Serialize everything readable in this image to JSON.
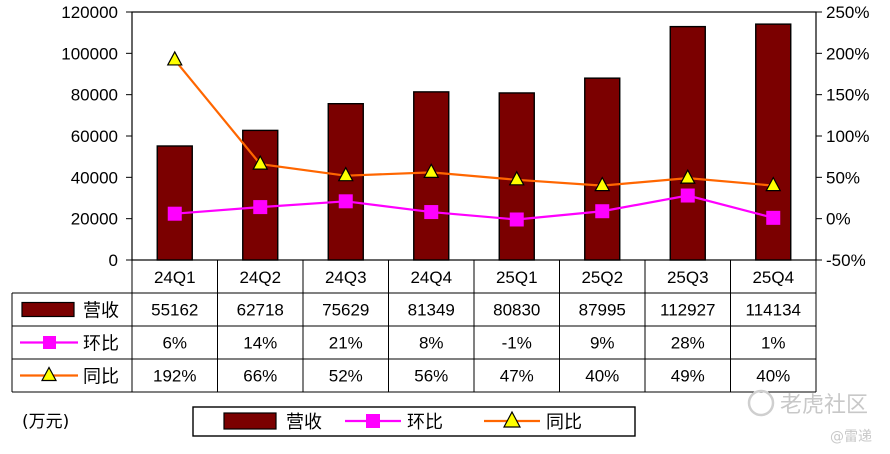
{
  "chart_data": {
    "type": "bar",
    "categories": [
      "24Q1",
      "24Q2",
      "24Q3",
      "24Q4",
      "25Q1",
      "25Q2",
      "25Q3",
      "25Q4"
    ],
    "series": [
      {
        "name": "营收",
        "type": "bar",
        "axis": "left",
        "color": "#7b0000",
        "values": [
          55162,
          62718,
          75629,
          81349,
          80830,
          87995,
          112927,
          114134
        ],
        "labels": [
          "55162",
          "62718",
          "75629",
          "81349",
          "80830",
          "87995",
          "112927",
          "114134"
        ]
      },
      {
        "name": "环比",
        "type": "line",
        "axis": "right",
        "color": "#ff00ff",
        "marker": "square",
        "values": [
          6,
          14,
          21,
          8,
          -1,
          9,
          28,
          1
        ],
        "labels": [
          "6%",
          "14%",
          "21%",
          "8%",
          "-1%",
          "9%",
          "28%",
          "1%"
        ]
      },
      {
        "name": "同比",
        "type": "line",
        "axis": "right",
        "color": "#ff6600",
        "marker": "triangle",
        "values": [
          192,
          66,
          52,
          56,
          47,
          40,
          49,
          40
        ],
        "labels": [
          "192%",
          "66%",
          "52%",
          "56%",
          "47%",
          "40%",
          "49%",
          "40%"
        ]
      }
    ],
    "ylim": [
      0,
      120000
    ],
    "yticks": [
      "0",
      "20000",
      "40000",
      "60000",
      "80000",
      "100000",
      "120000"
    ],
    "y2lim": [
      -50,
      250
    ],
    "y2ticks": [
      "-50%",
      "0%",
      "50%",
      "100%",
      "150%",
      "200%",
      "250%"
    ],
    "unit_label": "(万元)",
    "grid": false,
    "legend": {
      "position": "bottom",
      "items": [
        "营收",
        "环比",
        "同比"
      ]
    }
  },
  "watermark": {
    "text": "老虎社区",
    "sub": "@雷递"
  }
}
